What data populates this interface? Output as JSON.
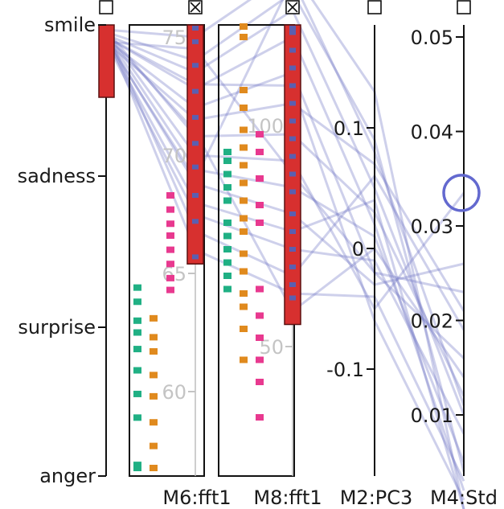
{
  "chart_data": {
    "type": "parallel-coordinates",
    "axes": [
      {
        "key": "emotion",
        "kind": "categorical",
        "categories": [
          "smile",
          "sadness",
          "surprise",
          "anger"
        ],
        "brushed": true,
        "checkbox": "unchecked"
      },
      {
        "key": "M6",
        "label": "M6:fft1",
        "kind": "histogram-numeric",
        "ticks": [
          60,
          65,
          70,
          75
        ],
        "range": [
          55.5,
          77.5
        ],
        "checkbox": "crossed"
      },
      {
        "key": "M8",
        "label": "M8:fft1",
        "kind": "histogram-numeric",
        "ticks": [
          50,
          100
        ],
        "range": [
          30,
          140
        ],
        "checkbox": "crossed"
      },
      {
        "key": "M2",
        "label": "M2:PC3",
        "kind": "numeric",
        "ticks": [
          -0.1,
          0,
          0.1
        ],
        "tick_labels": [
          "-0.1",
          "0",
          "0.1"
        ],
        "range": [
          -0.19,
          0.18
        ],
        "checkbox": "unchecked"
      },
      {
        "key": "M4",
        "label": "M4:Std",
        "kind": "numeric",
        "ticks": [
          0.01,
          0.02,
          0.03,
          0.04,
          0.05
        ],
        "tick_labels": [
          "0.01",
          "0.02",
          "0.03",
          "0.04",
          "0.05"
        ],
        "range": [
          0.0,
          0.0511
        ],
        "checkbox": "unchecked",
        "highlight_value": 0.0335
      }
    ],
    "brushes": {
      "emotion": [
        "smile"
      ],
      "M6": [
        65.4,
        77.5
      ],
      "M8": [
        55,
        140
      ]
    },
    "lines": [
      {
        "emotion": "smile",
        "M6": 75.0,
        "M8": 135,
        "M2": 0.13,
        "M4": 0.0
      },
      {
        "emotion": "smile",
        "M6": 74.0,
        "M8": 130,
        "M2": 0.09,
        "M4": 0.004
      },
      {
        "emotion": "smile",
        "M6": 73.5,
        "M8": 126,
        "M2": 0.05,
        "M4": 0.01
      },
      {
        "emotion": "smile",
        "M6": 72.8,
        "M8": 120,
        "M2": 0.02,
        "M4": 0.002
      },
      {
        "emotion": "smile",
        "M6": 72.0,
        "M8": 112,
        "M2": -0.02,
        "M4": 0.016
      },
      {
        "emotion": "smile",
        "M6": 71.5,
        "M8": 105,
        "M2": 0.07,
        "M4": 0.021
      },
      {
        "emotion": "smile",
        "M6": 70.8,
        "M8": 98,
        "M2": 0.03,
        "M4": 0.012
      },
      {
        "emotion": "smile",
        "M6": 70.0,
        "M8": 92,
        "M2": -0.05,
        "M4": 0.0335
      },
      {
        "emotion": "smile",
        "M6": 69.4,
        "M8": 86,
        "M2": 0.01,
        "M4": 0.005
      },
      {
        "emotion": "smile",
        "M6": 68.8,
        "M8": 80,
        "M2": -0.03,
        "M4": 0.026
      },
      {
        "emotion": "smile",
        "M6": 68.0,
        "M8": 76,
        "M2": 0.04,
        "M4": 0.0
      },
      {
        "emotion": "smile",
        "M6": 67.5,
        "M8": 72,
        "M2": -0.01,
        "M4": 0.008
      },
      {
        "emotion": "smile",
        "M6": 66.8,
        "M8": 66,
        "M2": 0.06,
        "M4": 0.019
      },
      {
        "emotion": "smile",
        "M6": 66.0,
        "M8": 62,
        "M2": -0.04,
        "M4": 0.003
      },
      {
        "emotion": "smile",
        "M6": 71.0,
        "M8": 58,
        "M2": 0.0,
        "M4": 0.014
      },
      {
        "emotion": "smile",
        "M6": 73.0,
        "M8": 109,
        "M2": -0.06,
        "M4": 0.001
      },
      {
        "emotion": "smile",
        "M6": 69.0,
        "M8": 133,
        "M2": 0.08,
        "M4": 0.011
      },
      {
        "emotion": "smile",
        "M6": 74.5,
        "M8": 89,
        "M2": -0.02,
        "M4": 0.023
      }
    ],
    "histograms": {
      "M6": {
        "smile_brushed_bar": [
          65.4,
          77.5
        ],
        "sadness": [
          64.3,
          64.8,
          65.4,
          66.0,
          66.6,
          67.1,
          67.7,
          68.3
        ],
        "surprise": [
          56.7,
          57.7,
          58.7,
          59.8,
          60.7,
          61.7,
          62.3,
          63.1
        ],
        "anger": [
          55.6,
          56.9,
          58.9,
          59.9,
          60.9,
          61.8,
          62.5,
          63.0,
          63.8,
          64.4
        ],
        "smile_marks": [
          65.7,
          67.2,
          68.3,
          69.5,
          70.5,
          71.6,
          72.7,
          73.8,
          74.8,
          75.8,
          77.2
        ]
      },
      "M8": {
        "smile_brushed_bar": [
          55,
          140
        ],
        "sadness": [
          34,
          42,
          47,
          52,
          57,
          63,
          78,
          82,
          88,
          94,
          98
        ],
        "surprise": [
          47,
          54,
          59,
          62,
          67,
          71,
          76,
          79,
          83,
          87,
          91,
          95,
          99,
          104,
          108,
          120,
          128,
          139
        ],
        "anger": [
          63,
          66,
          69,
          72,
          75,
          78,
          83,
          86,
          89,
          92,
          94
        ],
        "smile_marks": [
          61,
          64,
          68,
          72,
          76,
          80,
          85,
          89,
          93,
          97,
          101,
          105,
          109,
          113,
          117,
          121,
          125,
          130,
          134
        ]
      }
    },
    "colors": {
      "brush": "#d7302f",
      "brush_stroke": "#5a1010",
      "smile": "#5b5fb0",
      "sadness": "#e8398f",
      "surprise": "#e08a1e",
      "anger": "#20b084",
      "line": "#7279c6",
      "highlight": "#6369cf",
      "axis": "#111111"
    }
  }
}
